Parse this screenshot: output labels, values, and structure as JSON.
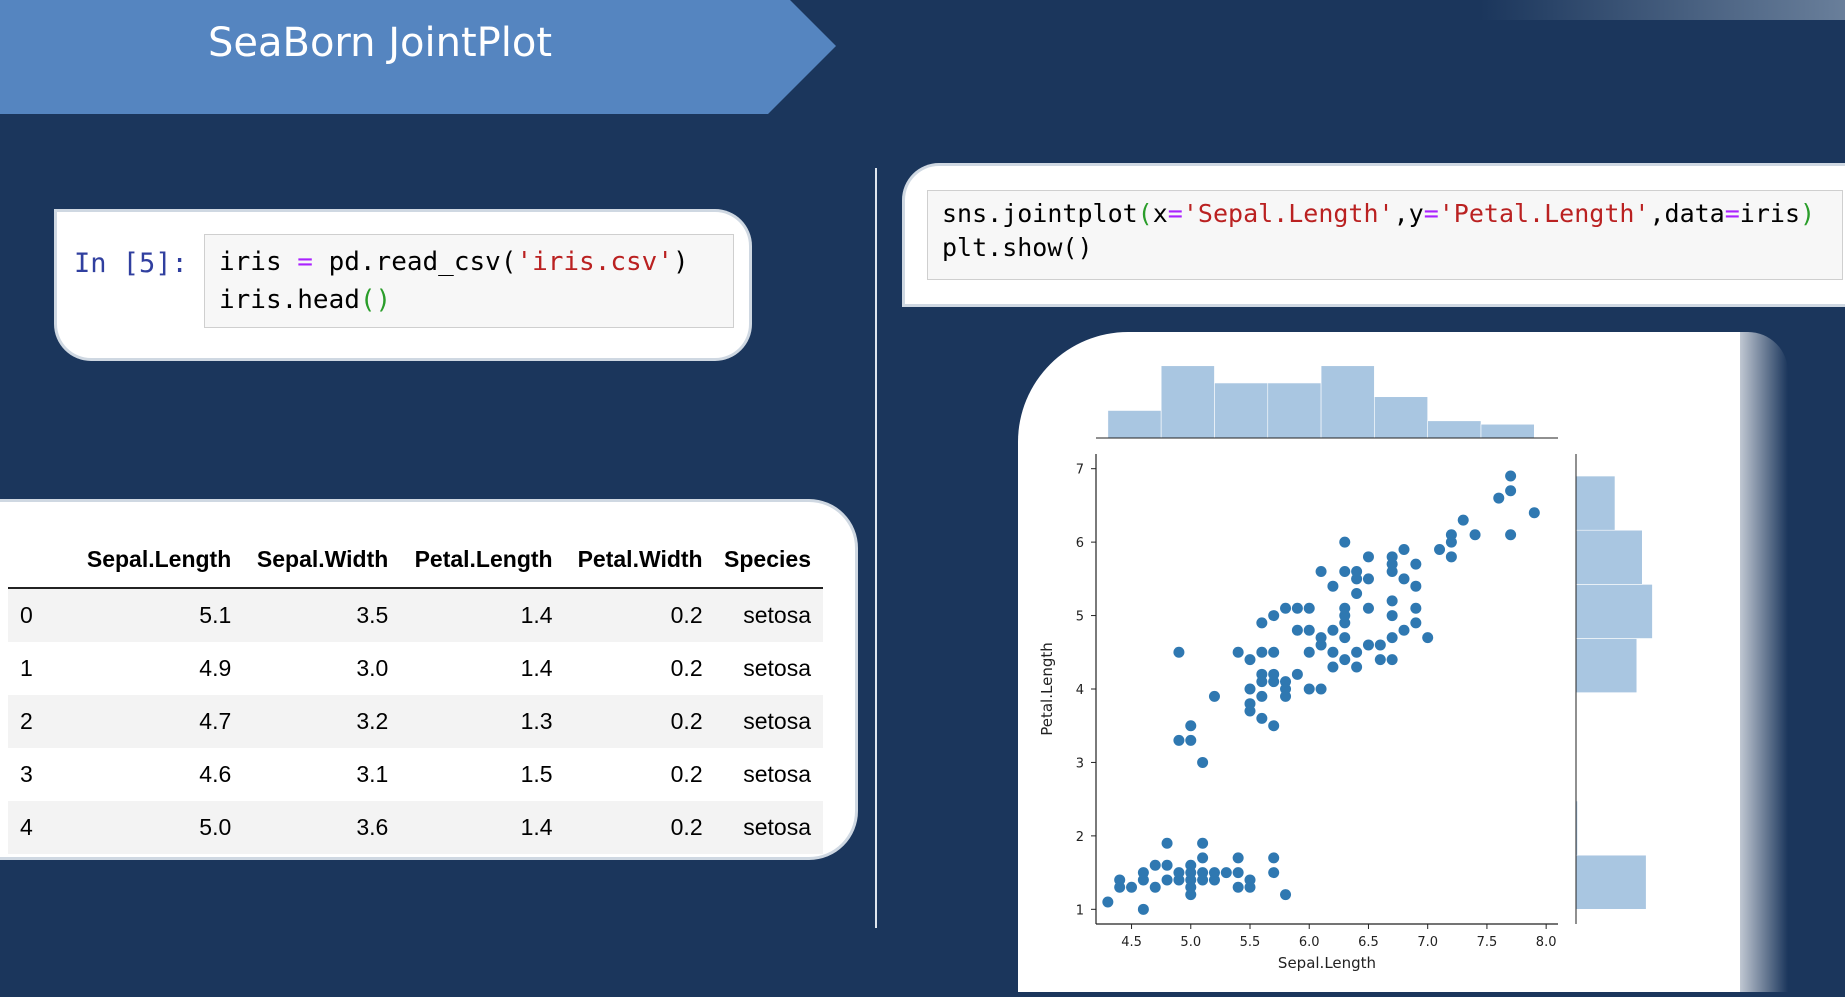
{
  "slide": {
    "title": "SeaBorn JointPlot"
  },
  "cell1": {
    "prompt": "In [5]:",
    "line1_var": "iris",
    "line1_eq": "=",
    "line1_call": "pd.read_csv(",
    "line1_str": "'iris.csv'",
    "line1_close": ")",
    "line2_call": "iris.head",
    "line2_parens": "()"
  },
  "cell2": {
    "line1_pre": "sns.jointplot",
    "line1_open": "(",
    "line1_x": "x",
    "line1_eq1": "=",
    "line1_xval": "'Sepal.Length'",
    "line1_comma1": ",y",
    "line1_eq2": "=",
    "line1_yval": "'Petal.Length'",
    "line1_comma2": ",data",
    "line1_eq3": "=",
    "line1_data": "iris",
    "line1_close": ")",
    "line2": "plt.show()"
  },
  "table": {
    "columns": [
      "",
      "Sepal.Length",
      "Sepal.Width",
      "Petal.Length",
      "Petal.Width",
      "Species"
    ],
    "rows": [
      [
        "0",
        "5.1",
        "3.5",
        "1.4",
        "0.2",
        "setosa"
      ],
      [
        "1",
        "4.9",
        "3.0",
        "1.4",
        "0.2",
        "setosa"
      ],
      [
        "2",
        "4.7",
        "3.2",
        "1.3",
        "0.2",
        "setosa"
      ],
      [
        "3",
        "4.6",
        "3.1",
        "1.5",
        "0.2",
        "setosa"
      ],
      [
        "4",
        "5.0",
        "3.6",
        "1.4",
        "0.2",
        "setosa"
      ]
    ]
  },
  "colors": {
    "background": "#1b365c",
    "banner": "#5585c0",
    "points": "#2f78b1",
    "hist": "#a9c6e1"
  },
  "chart_data": {
    "type": "scatter",
    "xlabel": "Sepal.Length",
    "ylabel": "Petal.Length",
    "xlim": [
      4.2,
      8.1
    ],
    "ylim": [
      0.8,
      7.2
    ],
    "xticks": [
      "4.5",
      "5.0",
      "5.5",
      "6.0",
      "6.5",
      "7.0",
      "7.5",
      "8.0"
    ],
    "yticks": [
      "1",
      "2",
      "3",
      "4",
      "5",
      "6",
      "7"
    ],
    "points": [
      [
        4.3,
        1.1
      ],
      [
        4.4,
        1.3
      ],
      [
        4.4,
        1.4
      ],
      [
        4.5,
        1.3
      ],
      [
        4.6,
        1.0
      ],
      [
        4.6,
        1.4
      ],
      [
        4.6,
        1.5
      ],
      [
        4.7,
        1.3
      ],
      [
        4.7,
        1.6
      ],
      [
        4.8,
        1.4
      ],
      [
        4.8,
        1.6
      ],
      [
        4.8,
        1.9
      ],
      [
        4.9,
        1.4
      ],
      [
        4.9,
        1.5
      ],
      [
        5.0,
        1.2
      ],
      [
        5.0,
        1.3
      ],
      [
        5.0,
        1.4
      ],
      [
        5.0,
        1.5
      ],
      [
        5.0,
        1.6
      ],
      [
        5.1,
        1.4
      ],
      [
        5.1,
        1.5
      ],
      [
        5.1,
        1.7
      ],
      [
        5.1,
        1.9
      ],
      [
        5.2,
        1.4
      ],
      [
        5.2,
        1.5
      ],
      [
        5.3,
        1.5
      ],
      [
        5.4,
        1.3
      ],
      [
        5.4,
        1.5
      ],
      [
        5.4,
        1.7
      ],
      [
        5.5,
        1.3
      ],
      [
        5.5,
        1.4
      ],
      [
        5.7,
        1.5
      ],
      [
        5.7,
        1.7
      ],
      [
        5.8,
        1.2
      ],
      [
        4.9,
        4.5
      ],
      [
        4.9,
        3.3
      ],
      [
        5.0,
        3.3
      ],
      [
        5.0,
        3.5
      ],
      [
        5.1,
        3.0
      ],
      [
        5.2,
        3.9
      ],
      [
        5.4,
        4.5
      ],
      [
        5.5,
        3.7
      ],
      [
        5.5,
        3.8
      ],
      [
        5.5,
        4.0
      ],
      [
        5.5,
        4.4
      ],
      [
        5.6,
        3.6
      ],
      [
        5.6,
        3.9
      ],
      [
        5.6,
        4.1
      ],
      [
        5.6,
        4.2
      ],
      [
        5.6,
        4.5
      ],
      [
        5.6,
        4.9
      ],
      [
        5.7,
        3.5
      ],
      [
        5.7,
        4.1
      ],
      [
        5.7,
        4.2
      ],
      [
        5.7,
        4.5
      ],
      [
        5.7,
        5.0
      ],
      [
        5.8,
        3.9
      ],
      [
        5.8,
        4.0
      ],
      [
        5.8,
        4.1
      ],
      [
        5.8,
        5.1
      ],
      [
        5.9,
        4.2
      ],
      [
        5.9,
        4.8
      ],
      [
        5.9,
        5.1
      ],
      [
        6.0,
        4.0
      ],
      [
        6.0,
        4.5
      ],
      [
        6.0,
        4.8
      ],
      [
        6.0,
        5.1
      ],
      [
        6.1,
        4.0
      ],
      [
        6.1,
        4.6
      ],
      [
        6.1,
        4.7
      ],
      [
        6.1,
        5.6
      ],
      [
        6.2,
        4.3
      ],
      [
        6.2,
        4.5
      ],
      [
        6.2,
        4.8
      ],
      [
        6.2,
        5.4
      ],
      [
        6.3,
        4.4
      ],
      [
        6.3,
        4.7
      ],
      [
        6.3,
        4.9
      ],
      [
        6.3,
        5.0
      ],
      [
        6.3,
        5.1
      ],
      [
        6.3,
        5.6
      ],
      [
        6.3,
        6.0
      ],
      [
        6.4,
        4.3
      ],
      [
        6.4,
        4.5
      ],
      [
        6.4,
        5.3
      ],
      [
        6.4,
        5.5
      ],
      [
        6.4,
        5.6
      ],
      [
        6.5,
        4.6
      ],
      [
        6.5,
        5.1
      ],
      [
        6.5,
        5.5
      ],
      [
        6.5,
        5.8
      ],
      [
        6.6,
        4.4
      ],
      [
        6.6,
        4.6
      ],
      [
        6.7,
        4.4
      ],
      [
        6.7,
        4.7
      ],
      [
        6.7,
        5.0
      ],
      [
        6.7,
        5.2
      ],
      [
        6.7,
        5.6
      ],
      [
        6.7,
        5.7
      ],
      [
        6.7,
        5.8
      ],
      [
        6.8,
        4.8
      ],
      [
        6.8,
        5.5
      ],
      [
        6.8,
        5.9
      ],
      [
        6.9,
        4.9
      ],
      [
        6.9,
        5.1
      ],
      [
        6.9,
        5.4
      ],
      [
        6.9,
        5.7
      ],
      [
        7.0,
        4.7
      ],
      [
        7.1,
        5.9
      ],
      [
        7.2,
        5.8
      ],
      [
        7.2,
        6.0
      ],
      [
        7.2,
        6.1
      ],
      [
        7.3,
        6.3
      ],
      [
        7.4,
        6.1
      ],
      [
        7.6,
        6.6
      ],
      [
        7.7,
        6.1
      ],
      [
        7.7,
        6.7
      ],
      [
        7.7,
        6.9
      ],
      [
        7.9,
        6.4
      ]
    ],
    "x_hist": [
      0.32,
      0.84,
      0.64,
      0.64,
      0.84,
      0.48,
      0.2,
      0.16
    ],
    "y_hist": [
      0.9,
      0.02,
      0.0,
      0.0,
      0.78,
      0.98,
      0.85,
      0.5
    ]
  }
}
